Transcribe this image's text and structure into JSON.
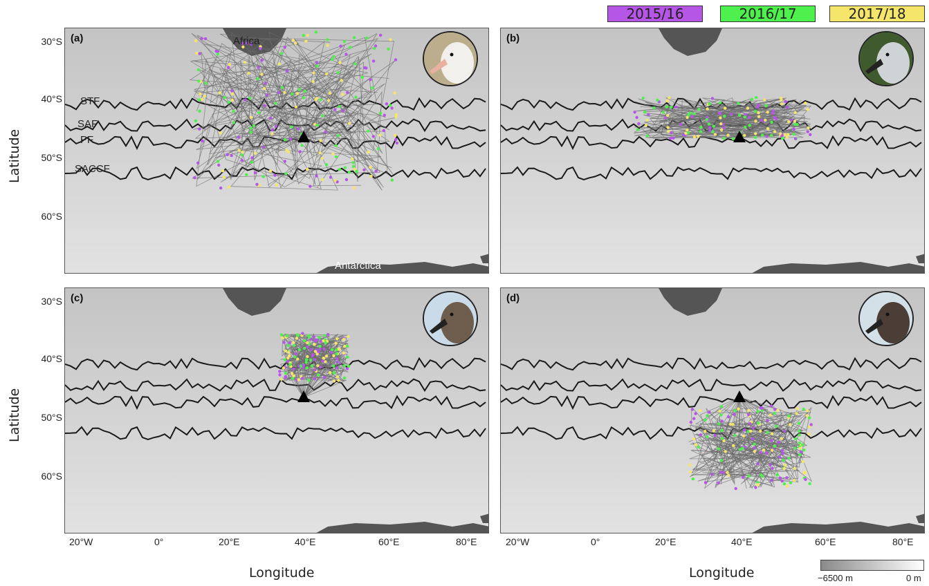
{
  "legend": {
    "items": [
      {
        "label": "2015/16",
        "color": "#b556e6"
      },
      {
        "label": "2016/17",
        "color": "#4df04d"
      },
      {
        "label": "2017/18",
        "color": "#f5e56b"
      }
    ]
  },
  "axes": {
    "xlabel": "Longitude",
    "ylabel": "Latitude",
    "lat_ticks": [
      "30°S",
      "40°S",
      "50°S",
      "60°S"
    ],
    "lon_ticks": [
      "20°W",
      "0°",
      "20°E",
      "40°E",
      "60°E",
      "80°E"
    ]
  },
  "map_labels": {
    "africa": "Africa",
    "antarctica": "Antarctica",
    "fronts": [
      "STF",
      "SAF",
      "PF",
      "SACCF"
    ]
  },
  "panels": [
    {
      "label": "(a)",
      "photo_icon": "wandering-albatross-photo"
    },
    {
      "label": "(b)",
      "photo_icon": "grey-headed-albatross-photo"
    },
    {
      "label": "(c)",
      "photo_icon": "dark-mantled-sooty-albatross-photo"
    },
    {
      "label": "(d)",
      "photo_icon": "light-mantled-albatross-photo"
    }
  ],
  "colorbar": {
    "min_label": "−6500 m",
    "max_label": "0 m",
    "colors": [
      "#8a8a8a",
      "#ffffff"
    ]
  },
  "colors": {
    "land": "#555555",
    "ocean": "#cfcfcf",
    "front_line": "#1a1a1a",
    "track_line": "#6b6b6b",
    "colony_marker": "#000000"
  }
}
